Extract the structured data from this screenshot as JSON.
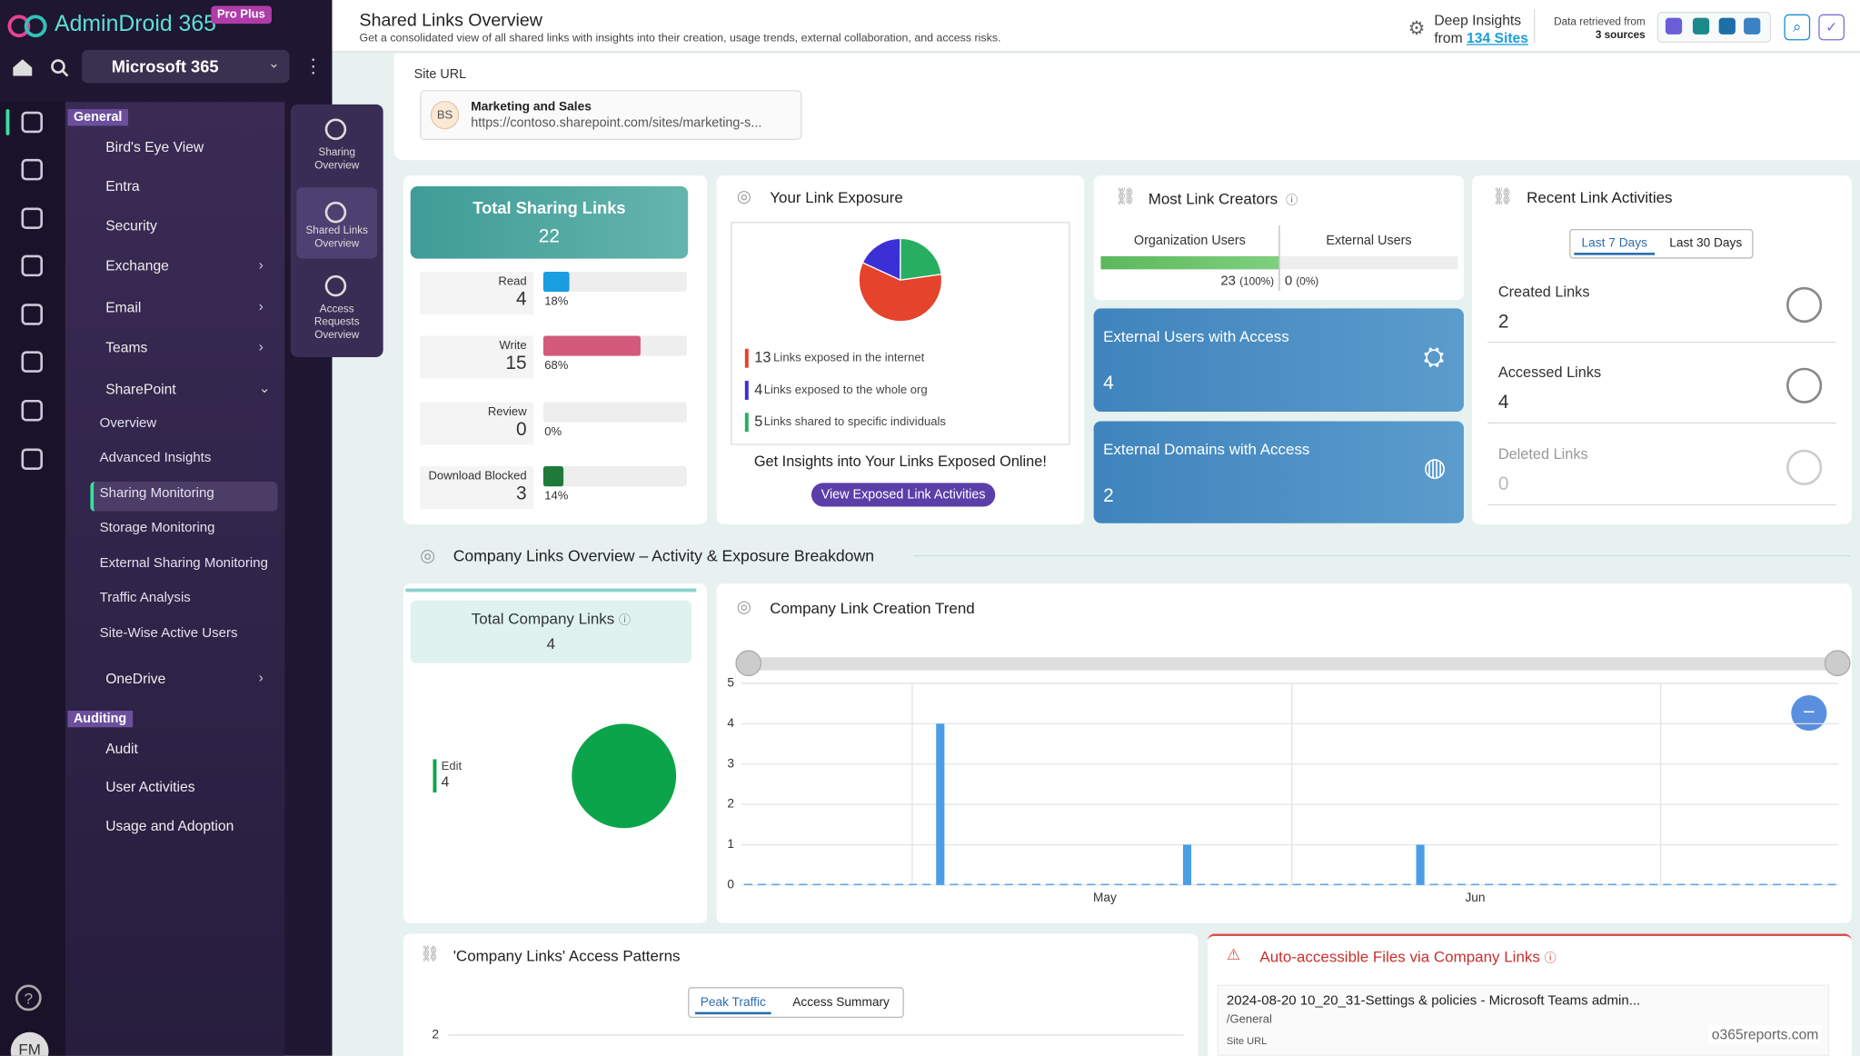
{
  "brand": {
    "name": "AdminDroid 365",
    "badge": "Pro Plus"
  },
  "nav": {
    "tenant": "Microsoft 365",
    "general_label": "General",
    "items": [
      "Bird's Eye View",
      "Entra",
      "Security",
      "Exchange",
      "Email",
      "Teams",
      "SharePoint"
    ],
    "sharepoint_items": [
      "Overview",
      "Advanced Insights",
      "Sharing Monitoring",
      "Storage Monitoring",
      "External Sharing Monitoring",
      "Traffic Analysis",
      "Site-Wise Active Users"
    ],
    "onedrive": "OneDrive",
    "auditing_label": "Auditing",
    "auditing_items": [
      "Audit",
      "User Activities",
      "Usage and Adoption"
    ],
    "avatar": "FM"
  },
  "subnav": [
    "Sharing Overview",
    "Shared Links Overview",
    "Access Requests Overview"
  ],
  "header": {
    "title": "Shared Links Overview",
    "subtitle": "Get a consolidated view of all shared links with insights into their creation, usage trends, external collaboration, and access risks.",
    "deep_insights": "Deep Insights",
    "from": "from",
    "sites": "134 Sites",
    "retrieved": "Data retrieved from",
    "sources": "3 sources"
  },
  "site_url": {
    "label": "Site URL",
    "initials": "BS",
    "name": "Marketing and Sales",
    "url": "https://contoso.sharepoint.com/sites/marketing-s..."
  },
  "total_links": {
    "title": "Total Sharing Links",
    "value": 22,
    "rows": [
      {
        "label": "Read",
        "value": 4,
        "percent": 18,
        "percent_label": "18%"
      },
      {
        "label": "Write",
        "value": 15,
        "percent": 68,
        "percent_label": "68%"
      },
      {
        "label": "Review",
        "value": 0,
        "percent": 0,
        "percent_label": "0%"
      },
      {
        "label": "Download Blocked",
        "value": 3,
        "percent": 14,
        "percent_label": "14%"
      }
    ]
  },
  "exposure": {
    "title": "Your Link Exposure",
    "items": [
      {
        "value": 13,
        "label": "Links exposed in the internet",
        "color": "#e5432c"
      },
      {
        "value": 4,
        "label": "Links exposed to the whole org",
        "color": "#3b2fd6"
      },
      {
        "value": 5,
        "label": "Links shared to specific individuals",
        "color": "#27ae60"
      }
    ],
    "cta": "Get Insights into Your Links Exposed Online!",
    "button": "View Exposed Link Activities"
  },
  "creators": {
    "title": "Most Link Creators",
    "tabs": [
      "Organization Users",
      "External Users"
    ],
    "org": {
      "value": 23,
      "percent": 100,
      "percent_label": "(100%)"
    },
    "ext": {
      "value": 0,
      "percent": 0,
      "percent_label": "(0%)"
    }
  },
  "ext_users": {
    "title": "External Users with Access",
    "value": 4
  },
  "ext_domains": {
    "title": "External Domains with Access",
    "value": 2
  },
  "recent": {
    "title": "Recent Link Activities",
    "tabs": [
      "Last 7 Days",
      "Last 30 Days"
    ],
    "items": [
      {
        "label": "Created Links",
        "value": 2
      },
      {
        "label": "Accessed Links",
        "value": 4
      },
      {
        "label": "Deleted Links",
        "value": 0
      }
    ]
  },
  "company": {
    "section_title": "Company Links Overview – Activity & Exposure Breakdown",
    "total_title": "Total Company Links",
    "total": 4,
    "legend": {
      "name": "Edit",
      "value": 4,
      "color": "#0ca44a"
    }
  },
  "trend": {
    "title": "Company Link Creation Trend",
    "ylim": [
      0,
      5
    ],
    "yticks": [
      0,
      1,
      2,
      3,
      4,
      5
    ],
    "color": "#4a9ee8",
    "categories": [
      null,
      null,
      null,
      null,
      null,
      null,
      null,
      null,
      null,
      null,
      null,
      null,
      null,
      null,
      null,
      null,
      null,
      null,
      null,
      null,
      null,
      null,
      null,
      null,
      null,
      null,
      "May",
      null,
      null,
      null,
      null,
      null,
      null,
      null,
      null,
      null,
      null,
      null,
      null,
      null,
      null,
      null,
      null,
      null,
      null,
      null,
      null,
      null,
      null,
      null,
      null,
      null,
      null,
      "Jun",
      null,
      null,
      null,
      null,
      null,
      null,
      null,
      null,
      null,
      null,
      null,
      null,
      null,
      null,
      null,
      null,
      null,
      null,
      null,
      null,
      null,
      null,
      null,
      null,
      null,
      null
    ],
    "values": [
      0,
      0,
      0,
      0,
      0,
      0,
      0,
      0,
      0,
      0,
      0,
      0,
      0,
      0,
      4,
      0,
      0,
      0,
      0,
      0,
      0,
      0,
      0,
      0,
      0,
      0,
      0,
      0,
      0,
      0,
      0,
      0,
      1,
      0,
      0,
      0,
      0,
      0,
      0,
      0,
      0,
      0,
      0,
      0,
      0,
      0,
      0,
      0,
      0,
      1,
      0,
      0,
      0,
      0,
      0,
      0,
      0,
      0,
      0,
      0,
      0,
      0,
      0,
      0,
      0,
      0,
      0,
      0,
      0,
      0,
      0,
      0,
      0,
      0,
      0,
      0,
      0,
      0,
      0,
      0
    ]
  },
  "patterns": {
    "title": "'Company Links' Access Patterns",
    "tabs": [
      "Peak Traffic",
      "Access Summary"
    ],
    "ytick": 2
  },
  "auto_files": {
    "title": "Auto-accessible Files via Company Links",
    "file": "2024-08-20 10_20_31-Settings & policies - Microsoft Teams admin...",
    "path": "/General",
    "site_label": "Site URL"
  },
  "watermark": "o365reports.com"
}
